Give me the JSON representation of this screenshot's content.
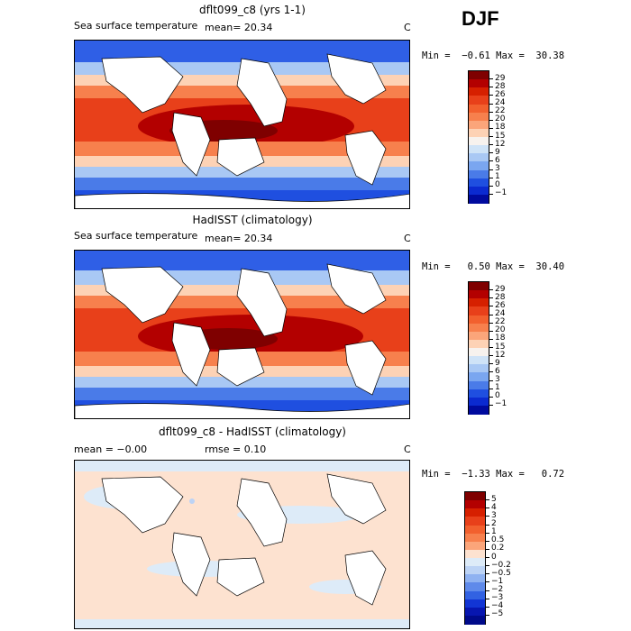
{
  "season": "DJF",
  "panels": [
    {
      "title": "dflt099_c8 (yrs 1-1)",
      "variable": "Sea surface temperature",
      "stat": "mean=  20.34",
      "unit": "C",
      "minmax": "Min =  −0.61 Max =  30.38",
      "levels": [
        "29",
        "28",
        "26",
        "24",
        "22",
        "20",
        "18",
        "15",
        "12",
        "9",
        "6",
        "3",
        "1",
        "0",
        "−1"
      ],
      "colors": [
        "#7f0000",
        "#b30000",
        "#d62000",
        "#e8401a",
        "#f2602e",
        "#f7804d",
        "#fba57a",
        "#fdd2b5",
        "#f7f2ee",
        "#cfe3f7",
        "#a9c8f4",
        "#7aa6f0",
        "#4a7be8",
        "#1f4fe0",
        "#0b2ad0",
        "#000a9e"
      ]
    },
    {
      "title": "HadISST (climatology)",
      "variable": "Sea surface temperature",
      "stat": "mean=  20.34",
      "unit": "C",
      "minmax": "Min =   0.50 Max =  30.40",
      "levels": [
        "29",
        "28",
        "26",
        "24",
        "22",
        "20",
        "18",
        "15",
        "12",
        "9",
        "6",
        "3",
        "1",
        "0",
        "−1"
      ],
      "colors": [
        "#7f0000",
        "#b30000",
        "#d62000",
        "#e8401a",
        "#f2602e",
        "#f7804d",
        "#fba57a",
        "#fdd2b5",
        "#f7f2ee",
        "#cfe3f7",
        "#a9c8f4",
        "#7aa6f0",
        "#4a7be8",
        "#1f4fe0",
        "#0b2ad0",
        "#000a9e"
      ]
    },
    {
      "title": "dflt099_c8 - HadISST (climatology)",
      "variable": "",
      "stat": "mean =  −0.00",
      "stat2": "rmse =   0.10",
      "unit": "C",
      "minmax": "Min =  −1.33 Max =   0.72",
      "levels": [
        "5",
        "4",
        "3",
        "2",
        "1",
        "0.5",
        "0.2",
        "0",
        "−0.2",
        "−0.5",
        "−1",
        "−2",
        "−3",
        "−4",
        "−5"
      ],
      "colors": [
        "#7f0000",
        "#b30000",
        "#d62000",
        "#e8401a",
        "#f2602e",
        "#f7804d",
        "#fba57a",
        "#fde2d0",
        "#ddebf8",
        "#bcd3f5",
        "#8fb2f1",
        "#5f8aea",
        "#3262e2",
        "#1235d4",
        "#0716b0",
        "#000a8a"
      ]
    }
  ],
  "chart_data": [
    {
      "type": "heatmap",
      "title": "dflt099_c8 (yrs 1-1)",
      "subtitle": "Sea surface temperature",
      "mean": 20.34,
      "unit": "C",
      "min": -0.61,
      "max": 30.38,
      "contour_levels": [
        -1,
        0,
        1,
        3,
        6,
        9,
        12,
        15,
        18,
        20,
        22,
        24,
        26,
        28,
        29
      ],
      "season": "DJF"
    },
    {
      "type": "heatmap",
      "title": "HadISST (climatology)",
      "subtitle": "Sea surface temperature",
      "mean": 20.34,
      "unit": "C",
      "min": 0.5,
      "max": 30.4,
      "contour_levels": [
        -1,
        0,
        1,
        3,
        6,
        9,
        12,
        15,
        18,
        20,
        22,
        24,
        26,
        28,
        29
      ],
      "season": "DJF"
    },
    {
      "type": "heatmap",
      "title": "dflt099_c8 - HadISST (climatology)",
      "mean": -0.0,
      "rmse": 0.1,
      "unit": "C",
      "min": -1.33,
      "max": 0.72,
      "contour_levels": [
        -5,
        -4,
        -3,
        -2,
        -1,
        -0.5,
        -0.2,
        0,
        0.2,
        0.5,
        1,
        2,
        3,
        4,
        5
      ],
      "season": "DJF"
    }
  ]
}
